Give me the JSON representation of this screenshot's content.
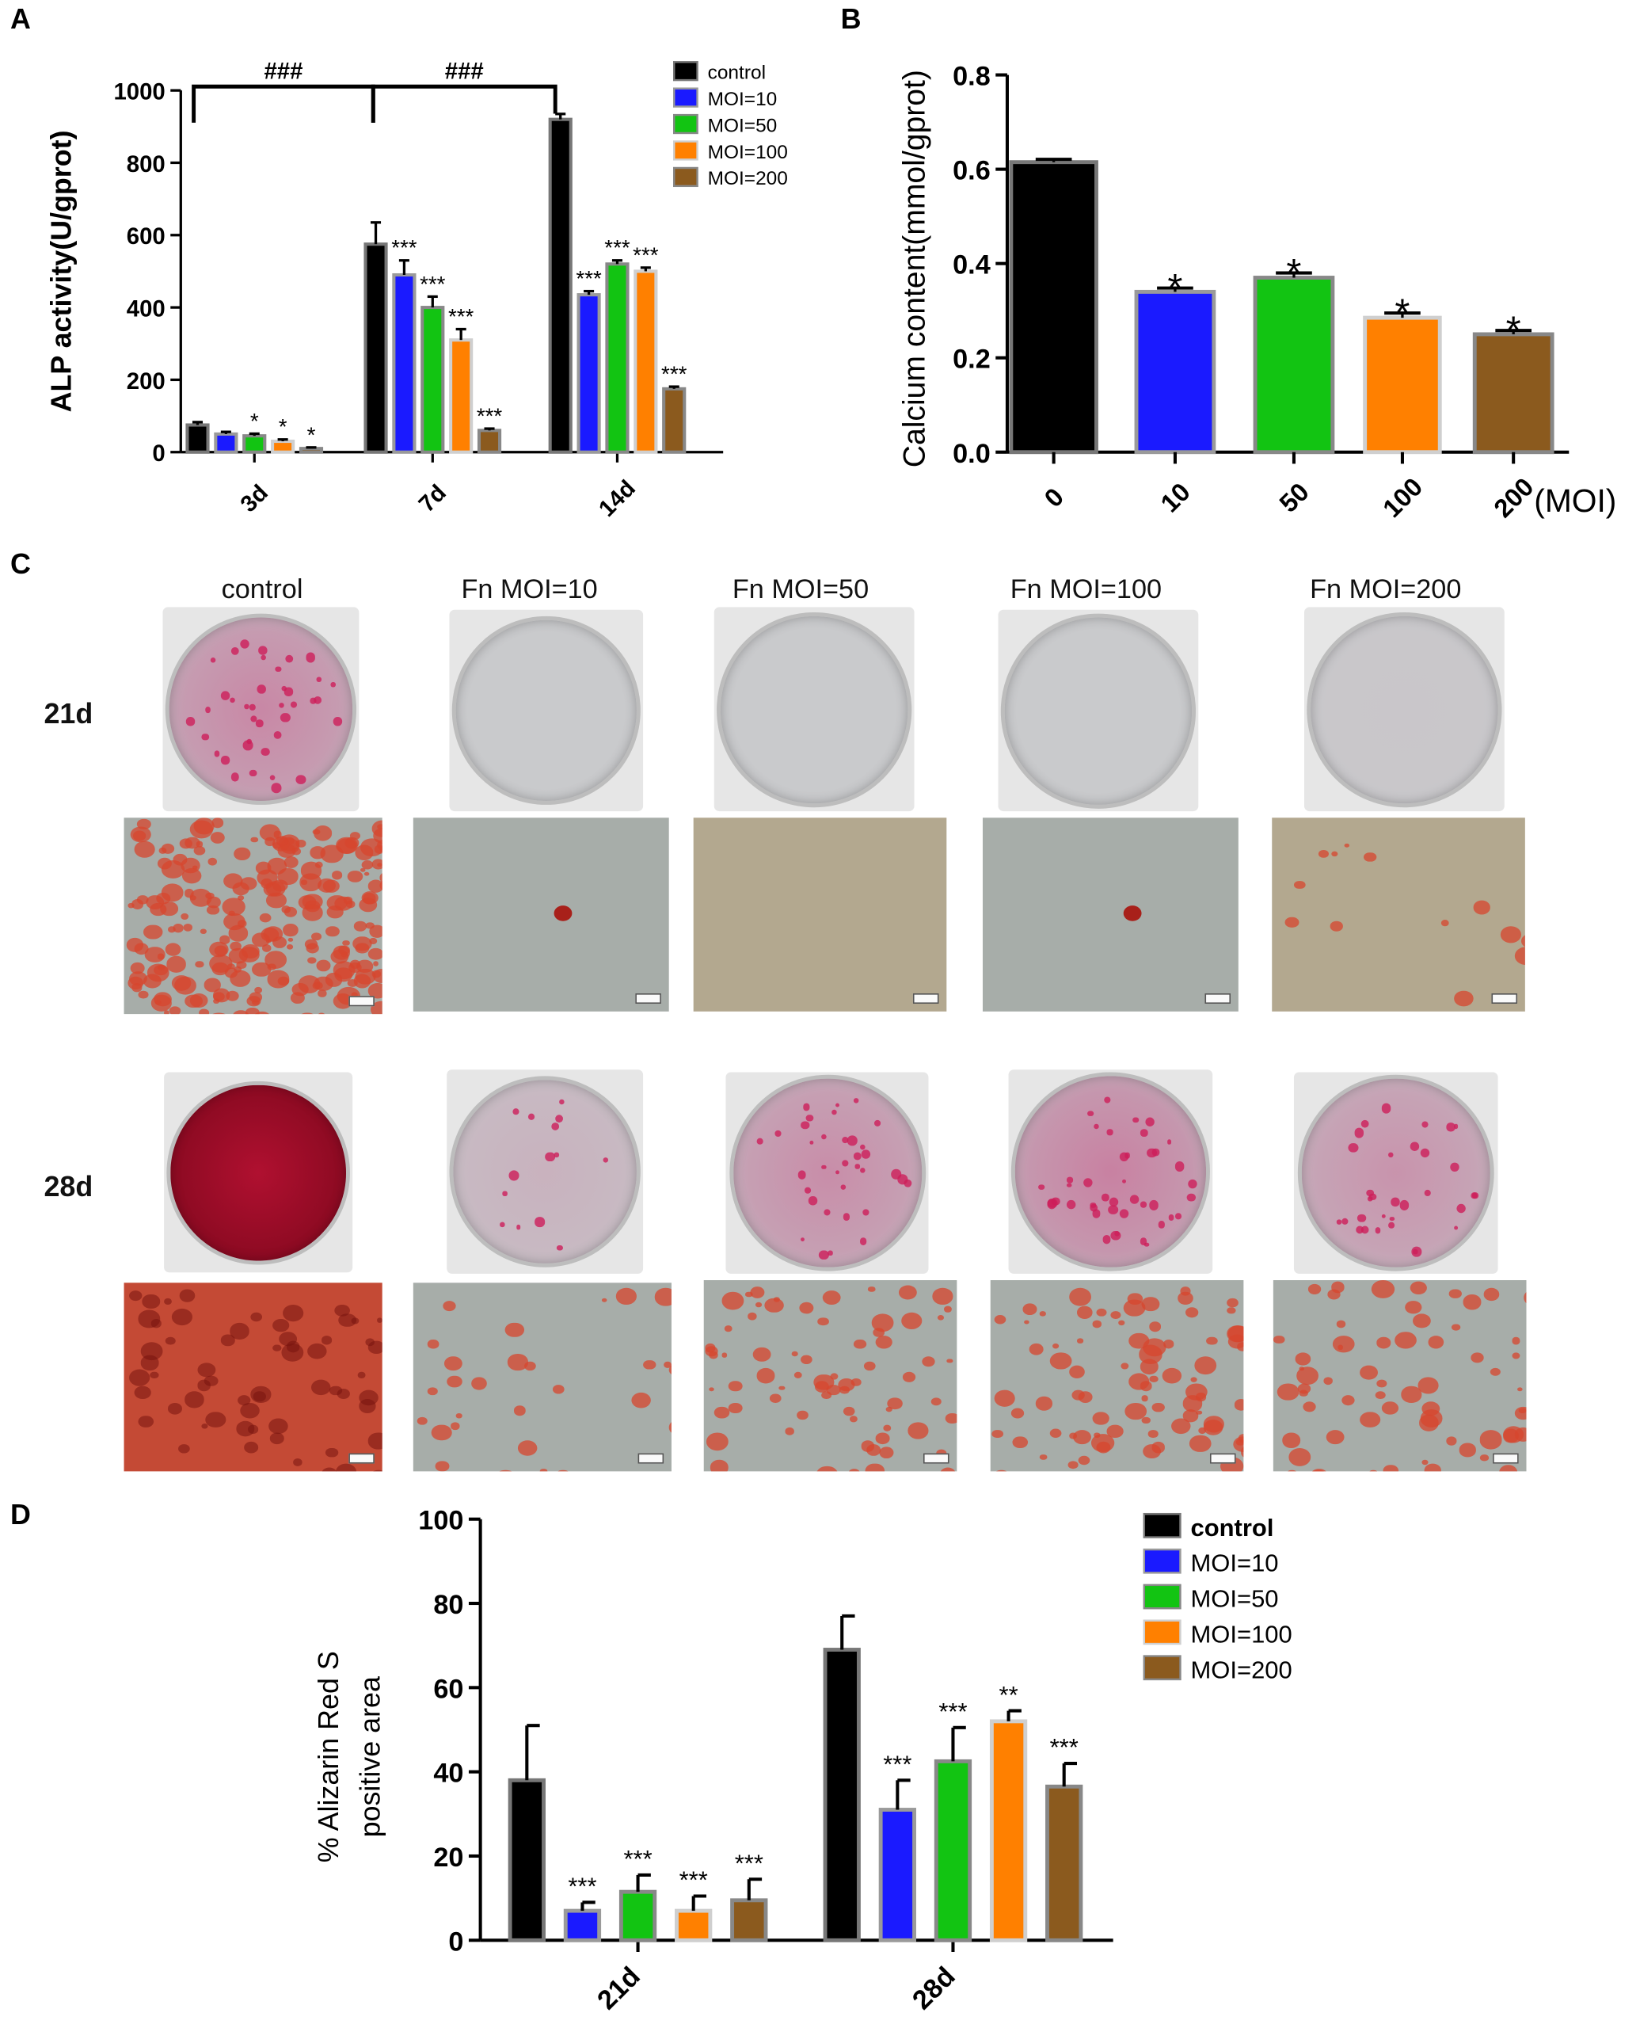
{
  "panels": {
    "a": "A",
    "b": "B",
    "c": "C",
    "d": "D"
  },
  "colors": {
    "control": "#000000",
    "moi10": "#1a1aff",
    "moi50": "#12c412",
    "moi100": "#ff8000",
    "moi200": "#8b5a1e"
  },
  "panel_c": {
    "columns": [
      "control",
      "Fn MOI=10",
      "Fn MOI=50",
      "Fn MOI=100",
      "Fn MOI=200"
    ],
    "rows": [
      "21d",
      "28d"
    ],
    "stain_level": {
      "21d": [
        0.55,
        0.0,
        0.0,
        0.0,
        0.03
      ],
      "28d": [
        1.0,
        0.2,
        0.5,
        0.6,
        0.45
      ]
    }
  },
  "chart_data": [
    {
      "type": "bar",
      "panel": "A",
      "ylabel": "ALP activity(U/gprot)",
      "xlabel": "",
      "ylim": [
        0,
        1000
      ],
      "yticks": [
        "0",
        "200",
        "400",
        "600",
        "800",
        "1000"
      ],
      "categories": [
        "3d",
        "7d",
        "14d"
      ],
      "legend_position": "top-right",
      "series": [
        {
          "name": "control",
          "values": [
            75,
            575,
            920
          ],
          "errors": [
            8,
            60,
            15
          ],
          "sig": [
            "",
            "",
            ""
          ]
        },
        {
          "name": "MOI=10",
          "values": [
            50,
            490,
            435
          ],
          "errors": [
            6,
            40,
            10
          ],
          "sig": [
            "",
            "***",
            "***"
          ]
        },
        {
          "name": "MOI=50",
          "values": [
            45,
            400,
            520
          ],
          "errors": [
            6,
            30,
            10
          ],
          "sig": [
            "*",
            "***",
            "***"
          ]
        },
        {
          "name": "MOI=100",
          "values": [
            30,
            310,
            500
          ],
          "errors": [
            5,
            30,
            10
          ],
          "sig": [
            "*",
            "***",
            "***"
          ]
        },
        {
          "name": "MOI=200",
          "values": [
            10,
            60,
            175
          ],
          "errors": [
            3,
            5,
            6
          ],
          "sig": [
            "*",
            "***",
            "***"
          ]
        }
      ],
      "brackets": [
        {
          "from": "3d",
          "to": "7d",
          "label": "###"
        },
        {
          "from": "7d",
          "to": "14d",
          "label": "###"
        }
      ]
    },
    {
      "type": "bar",
      "panel": "B",
      "ylabel": "Calcium content(mmol/gprot)",
      "xlabel": "(MOI)",
      "ylim": [
        0,
        0.8
      ],
      "yticks": [
        "0.0",
        "0.2",
        "0.4",
        "0.6",
        "0.8"
      ],
      "categories": [
        "0",
        "10",
        "50",
        "100",
        "200"
      ],
      "values": [
        0.615,
        0.34,
        0.37,
        0.285,
        0.25
      ],
      "errors": [
        0.006,
        0.008,
        0.01,
        0.01,
        0.008
      ],
      "sig": [
        "",
        "*",
        "*",
        "*",
        "*"
      ]
    },
    {
      "type": "bar",
      "panel": "D",
      "ylabel_lines": [
        "% Alizarin Red S",
        "positive area"
      ],
      "xlabel": "",
      "ylim": [
        0,
        100
      ],
      "yticks": [
        "0",
        "20",
        "40",
        "60",
        "80",
        "100"
      ],
      "categories": [
        "21d",
        "28d"
      ],
      "legend_position": "top-right",
      "series": [
        {
          "name": "control",
          "values": [
            38,
            69
          ],
          "errors": [
            13,
            8
          ],
          "sig": [
            "",
            ""
          ]
        },
        {
          "name": "MOI=10",
          "values": [
            7,
            31
          ],
          "errors": [
            2,
            7
          ],
          "sig": [
            "***",
            "***"
          ]
        },
        {
          "name": "MOI=50",
          "values": [
            11.5,
            42.5
          ],
          "errors": [
            4,
            8
          ],
          "sig": [
            "***",
            "***"
          ]
        },
        {
          "name": "MOI=100",
          "values": [
            7,
            52
          ],
          "errors": [
            3.5,
            2.5
          ],
          "sig": [
            "***",
            "**"
          ]
        },
        {
          "name": "MOI=200",
          "values": [
            9.5,
            36.5
          ],
          "errors": [
            5,
            5.5
          ],
          "sig": [
            "***",
            "***"
          ]
        }
      ]
    }
  ]
}
